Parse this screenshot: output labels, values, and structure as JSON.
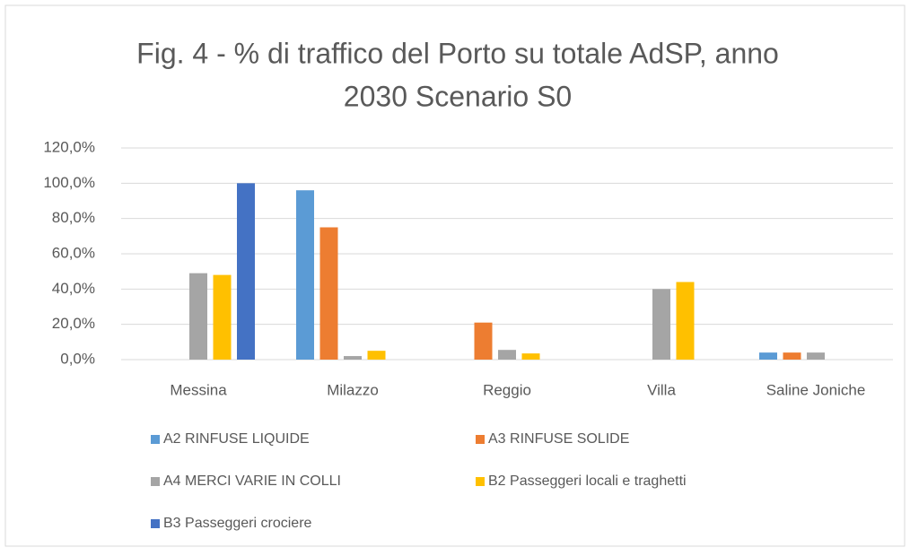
{
  "chart_data": {
    "type": "bar",
    "title": [
      "Fig. 4 - % di traffico del Porto su totale AdSP, anno",
      "2030 Scenario S0"
    ],
    "categories": [
      "Messina",
      "Milazzo",
      "Reggio",
      "Villa",
      "Saline Joniche"
    ],
    "series": [
      {
        "name": "A2 RINFUSE LIQUIDE",
        "color": "#5b9bd5",
        "values": [
          0,
          96,
          0,
          0,
          4
        ]
      },
      {
        "name": "A3 RINFUSE SOLIDE",
        "color": "#ed7d31",
        "values": [
          0,
          75,
          21,
          0,
          4
        ]
      },
      {
        "name": "A4 MERCI VARIE IN COLLI",
        "color": "#a5a5a5",
        "values": [
          49,
          2,
          5.5,
          40,
          4
        ]
      },
      {
        "name": "B2 Passeggeri locali e traghetti",
        "color": "#ffc000",
        "values": [
          48,
          5,
          3.5,
          44,
          0
        ]
      },
      {
        "name": "B3 Passeggeri crociere",
        "color": "#4472c4",
        "values": [
          100,
          0,
          0,
          0,
          0
        ]
      }
    ],
    "ylim": [
      0,
      120
    ],
    "yticks": [
      {
        "value": 0,
        "label": "0,0%"
      },
      {
        "value": 20,
        "label": "20,0%"
      },
      {
        "value": 40,
        "label": "40,0%"
      },
      {
        "value": 60,
        "label": "60,0%"
      },
      {
        "value": 80,
        "label": "80,0%"
      },
      {
        "value": 100,
        "label": "100,0%"
      },
      {
        "value": 120,
        "label": "120,0%"
      }
    ],
    "grid": true,
    "legend": "bottom"
  }
}
